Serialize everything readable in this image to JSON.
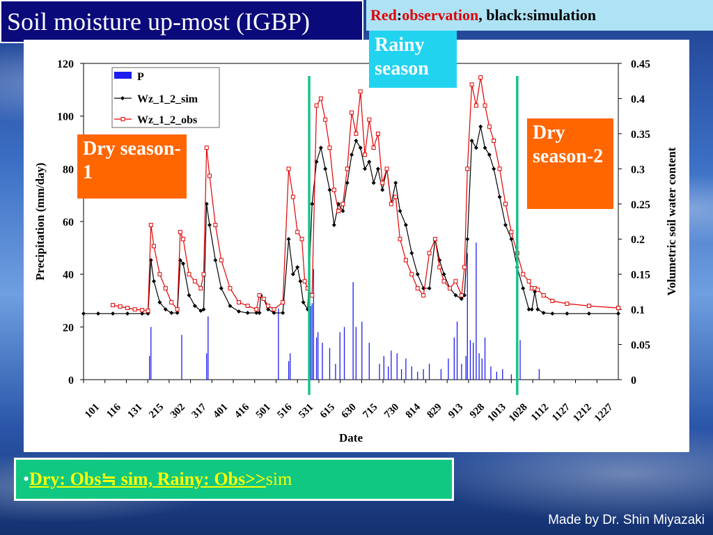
{
  "header": {
    "title": "Soil moisture up-most (IGBP)",
    "legend_red": "Red",
    "legend_sep1": ":",
    "legend_obs": "observation",
    "legend_comma": ",",
    "legend_black": "black",
    "legend_sep2": ":",
    "legend_sim": "simulation"
  },
  "labels": {
    "dry1": "Dry season-1",
    "dry2": "Dry season-2",
    "rainy": "Rainy season"
  },
  "summary": {
    "bullet": "•",
    "part1": "Dry: Obs≒ sim,  Rainy: Obs>>",
    "part2": "sim"
  },
  "credit": "Made by Dr. Shin Miyazaki",
  "colors": {
    "obs": "#e00000",
    "sim": "#000000",
    "precip": "#1c1cf0",
    "season_line": "#19c28c",
    "dry_box": "#ff6600",
    "rainy_box": "#22d3f0"
  },
  "chart_data": {
    "type": "line",
    "title": "",
    "xlabel": "Date",
    "ylabel": "Precipitation (mm/day)",
    "y2label": "Volumetric soil water content",
    "ylim": [
      0,
      120
    ],
    "y2lim": [
      0,
      0.45
    ],
    "yticks": [
      0,
      20,
      40,
      60,
      80,
      100,
      120
    ],
    "y2ticks": [
      0,
      0.05,
      0.1,
      0.15,
      0.2,
      0.25,
      0.3,
      0.35,
      0.4,
      0.45
    ],
    "xticks": [
      "101",
      "116",
      "131",
      "215",
      "302",
      "317",
      "401",
      "416",
      "501",
      "516",
      "531",
      "615",
      "630",
      "715",
      "730",
      "814",
      "829",
      "913",
      "928",
      "1013",
      "1028",
      "1112",
      "1127",
      "1212",
      "1227"
    ],
    "xaxis_days": 365,
    "legend": [
      "P",
      "Wz_1_2_sim",
      "Wz_1_2_obs"
    ],
    "legend_position": "top-left",
    "season_boundaries_day": [
      154,
      296
    ],
    "series": [
      {
        "name": "Wz_1_2_sim",
        "axis": "y2",
        "points": [
          [
            0,
            0.094
          ],
          [
            10,
            0.094
          ],
          [
            20,
            0.094
          ],
          [
            30,
            0.094
          ],
          [
            40,
            0.094
          ],
          [
            44,
            0.094
          ],
          [
            46,
            0.17
          ],
          [
            48,
            0.14
          ],
          [
            52,
            0.11
          ],
          [
            56,
            0.1
          ],
          [
            60,
            0.095
          ],
          [
            64,
            0.095
          ],
          [
            66,
            0.17
          ],
          [
            68,
            0.165
          ],
          [
            72,
            0.12
          ],
          [
            76,
            0.105
          ],
          [
            80,
            0.098
          ],
          [
            82,
            0.1
          ],
          [
            84,
            0.25
          ],
          [
            86,
            0.22
          ],
          [
            90,
            0.17
          ],
          [
            94,
            0.13
          ],
          [
            100,
            0.105
          ],
          [
            106,
            0.097
          ],
          [
            112,
            0.095
          ],
          [
            118,
            0.095
          ],
          [
            120,
            0.095
          ],
          [
            121,
            0.12
          ],
          [
            123,
            0.115
          ],
          [
            126,
            0.1
          ],
          [
            130,
            0.095
          ],
          [
            136,
            0.095
          ],
          [
            140,
            0.2
          ],
          [
            143,
            0.15
          ],
          [
            146,
            0.16
          ],
          [
            148,
            0.14
          ],
          [
            150,
            0.11
          ],
          [
            153,
            0.1
          ],
          [
            156,
            0.25
          ],
          [
            159,
            0.31
          ],
          [
            162,
            0.33
          ],
          [
            165,
            0.3
          ],
          [
            168,
            0.27
          ],
          [
            171,
            0.22
          ],
          [
            174,
            0.25
          ],
          [
            177,
            0.24
          ],
          [
            180,
            0.28
          ],
          [
            183,
            0.32
          ],
          [
            186,
            0.34
          ],
          [
            189,
            0.33
          ],
          [
            192,
            0.3
          ],
          [
            195,
            0.31
          ],
          [
            198,
            0.28
          ],
          [
            201,
            0.3
          ],
          [
            204,
            0.27
          ],
          [
            207,
            0.3
          ],
          [
            210,
            0.25
          ],
          [
            213,
            0.28
          ],
          [
            216,
            0.24
          ],
          [
            220,
            0.22
          ],
          [
            224,
            0.18
          ],
          [
            228,
            0.15
          ],
          [
            232,
            0.13
          ],
          [
            236,
            0.13
          ],
          [
            240,
            0.2
          ],
          [
            243,
            0.17
          ],
          [
            246,
            0.15
          ],
          [
            250,
            0.13
          ],
          [
            254,
            0.12
          ],
          [
            258,
            0.115
          ],
          [
            260,
            0.12
          ],
          [
            262,
            0.2
          ],
          [
            265,
            0.34
          ],
          [
            268,
            0.33
          ],
          [
            271,
            0.36
          ],
          [
            274,
            0.33
          ],
          [
            277,
            0.32
          ],
          [
            280,
            0.3
          ],
          [
            284,
            0.26
          ],
          [
            288,
            0.22
          ],
          [
            292,
            0.2
          ],
          [
            296,
            0.16
          ],
          [
            300,
            0.13
          ],
          [
            304,
            0.1
          ],
          [
            306,
            0.1
          ],
          [
            308,
            0.125
          ],
          [
            310,
            0.1
          ],
          [
            314,
            0.095
          ],
          [
            320,
            0.094
          ],
          [
            330,
            0.094
          ],
          [
            345,
            0.094
          ],
          [
            365,
            0.094
          ]
        ]
      },
      {
        "name": "Wz_1_2_obs",
        "axis": "y2",
        "points": [
          [
            20,
            0.106
          ],
          [
            25,
            0.104
          ],
          [
            30,
            0.102
          ],
          [
            35,
            0.1
          ],
          [
            40,
            0.099
          ],
          [
            44,
            0.098
          ],
          [
            46,
            0.22
          ],
          [
            48,
            0.19
          ],
          [
            52,
            0.15
          ],
          [
            56,
            0.13
          ],
          [
            60,
            0.11
          ],
          [
            64,
            0.1
          ],
          [
            66,
            0.21
          ],
          [
            68,
            0.2
          ],
          [
            72,
            0.15
          ],
          [
            76,
            0.14
          ],
          [
            80,
            0.13
          ],
          [
            82,
            0.15
          ],
          [
            84,
            0.33
          ],
          [
            86,
            0.29
          ],
          [
            90,
            0.22
          ],
          [
            94,
            0.17
          ],
          [
            100,
            0.13
          ],
          [
            106,
            0.11
          ],
          [
            112,
            0.105
          ],
          [
            118,
            0.1
          ],
          [
            120,
            0.12
          ],
          [
            123,
            0.115
          ],
          [
            126,
            0.105
          ],
          [
            130,
            0.1
          ],
          [
            136,
            0.11
          ],
          [
            140,
            0.3
          ],
          [
            143,
            0.26
          ],
          [
            146,
            0.21
          ],
          [
            149,
            0.2
          ],
          [
            151,
            0.14
          ],
          [
            153,
            0.13
          ],
          [
            156,
            0.12
          ],
          [
            159,
            0.39
          ],
          [
            162,
            0.4
          ],
          [
            165,
            0.37
          ],
          [
            168,
            0.33
          ],
          [
            171,
            0.27
          ],
          [
            174,
            0.24
          ],
          [
            177,
            0.25
          ],
          [
            180,
            0.3
          ],
          [
            183,
            0.38
          ],
          [
            186,
            0.35
          ],
          [
            189,
            0.41
          ],
          [
            192,
            0.32
          ],
          [
            195,
            0.37
          ],
          [
            198,
            0.33
          ],
          [
            201,
            0.35
          ],
          [
            204,
            0.28
          ],
          [
            207,
            0.3
          ],
          [
            210,
            0.25
          ],
          [
            213,
            0.26
          ],
          [
            216,
            0.2
          ],
          [
            220,
            0.17
          ],
          [
            224,
            0.15
          ],
          [
            228,
            0.13
          ],
          [
            232,
            0.12
          ],
          [
            236,
            0.18
          ],
          [
            240,
            0.2
          ],
          [
            243,
            0.16
          ],
          [
            246,
            0.14
          ],
          [
            250,
            0.13
          ],
          [
            254,
            0.14
          ],
          [
            258,
            0.12
          ],
          [
            260,
            0.16
          ],
          [
            262,
            0.3
          ],
          [
            265,
            0.42
          ],
          [
            268,
            0.39
          ],
          [
            271,
            0.43
          ],
          [
            274,
            0.39
          ],
          [
            277,
            0.36
          ],
          [
            280,
            0.34
          ],
          [
            284,
            0.3
          ],
          [
            288,
            0.25
          ],
          [
            292,
            0.21
          ],
          [
            296,
            0.18
          ],
          [
            300,
            0.15
          ],
          [
            304,
            0.14
          ],
          [
            306,
            0.13
          ],
          [
            308,
            0.13
          ],
          [
            310,
            0.128
          ],
          [
            314,
            0.12
          ],
          [
            320,
            0.112
          ],
          [
            330,
            0.108
          ],
          [
            345,
            0.105
          ],
          [
            365,
            0.102
          ]
        ]
      },
      {
        "name": "P",
        "axis": "y",
        "type": "bar",
        "points": [
          [
            45,
            9
          ],
          [
            46,
            20
          ],
          [
            67,
            17
          ],
          [
            84,
            10
          ],
          [
            85,
            24
          ],
          [
            133,
            27
          ],
          [
            140,
            7
          ],
          [
            141,
            10
          ],
          [
            155,
            28
          ],
          [
            156,
            29
          ],
          [
            157,
            42
          ],
          [
            159,
            16
          ],
          [
            160,
            18
          ],
          [
            163,
            14
          ],
          [
            168,
            12
          ],
          [
            172,
            6
          ],
          [
            175,
            18
          ],
          [
            178,
            20
          ],
          [
            184,
            37
          ],
          [
            186,
            20
          ],
          [
            190,
            22
          ],
          [
            195,
            14
          ],
          [
            202,
            6
          ],
          [
            205,
            9
          ],
          [
            208,
            5
          ],
          [
            210,
            11
          ],
          [
            214,
            10
          ],
          [
            217,
            4
          ],
          [
            220,
            8
          ],
          [
            224,
            5
          ],
          [
            228,
            3
          ],
          [
            232,
            4
          ],
          [
            236,
            6
          ],
          [
            244,
            4
          ],
          [
            249,
            8
          ],
          [
            253,
            16
          ],
          [
            255,
            22
          ],
          [
            258,
            6
          ],
          [
            261,
            9
          ],
          [
            262,
            48
          ],
          [
            264,
            15
          ],
          [
            266,
            14
          ],
          [
            268,
            52
          ],
          [
            270,
            10
          ],
          [
            272,
            8
          ],
          [
            274,
            16
          ],
          [
            278,
            5
          ],
          [
            282,
            3
          ],
          [
            286,
            4
          ],
          [
            292,
            2
          ],
          [
            298,
            15
          ],
          [
            311,
            4
          ]
        ]
      }
    ]
  }
}
